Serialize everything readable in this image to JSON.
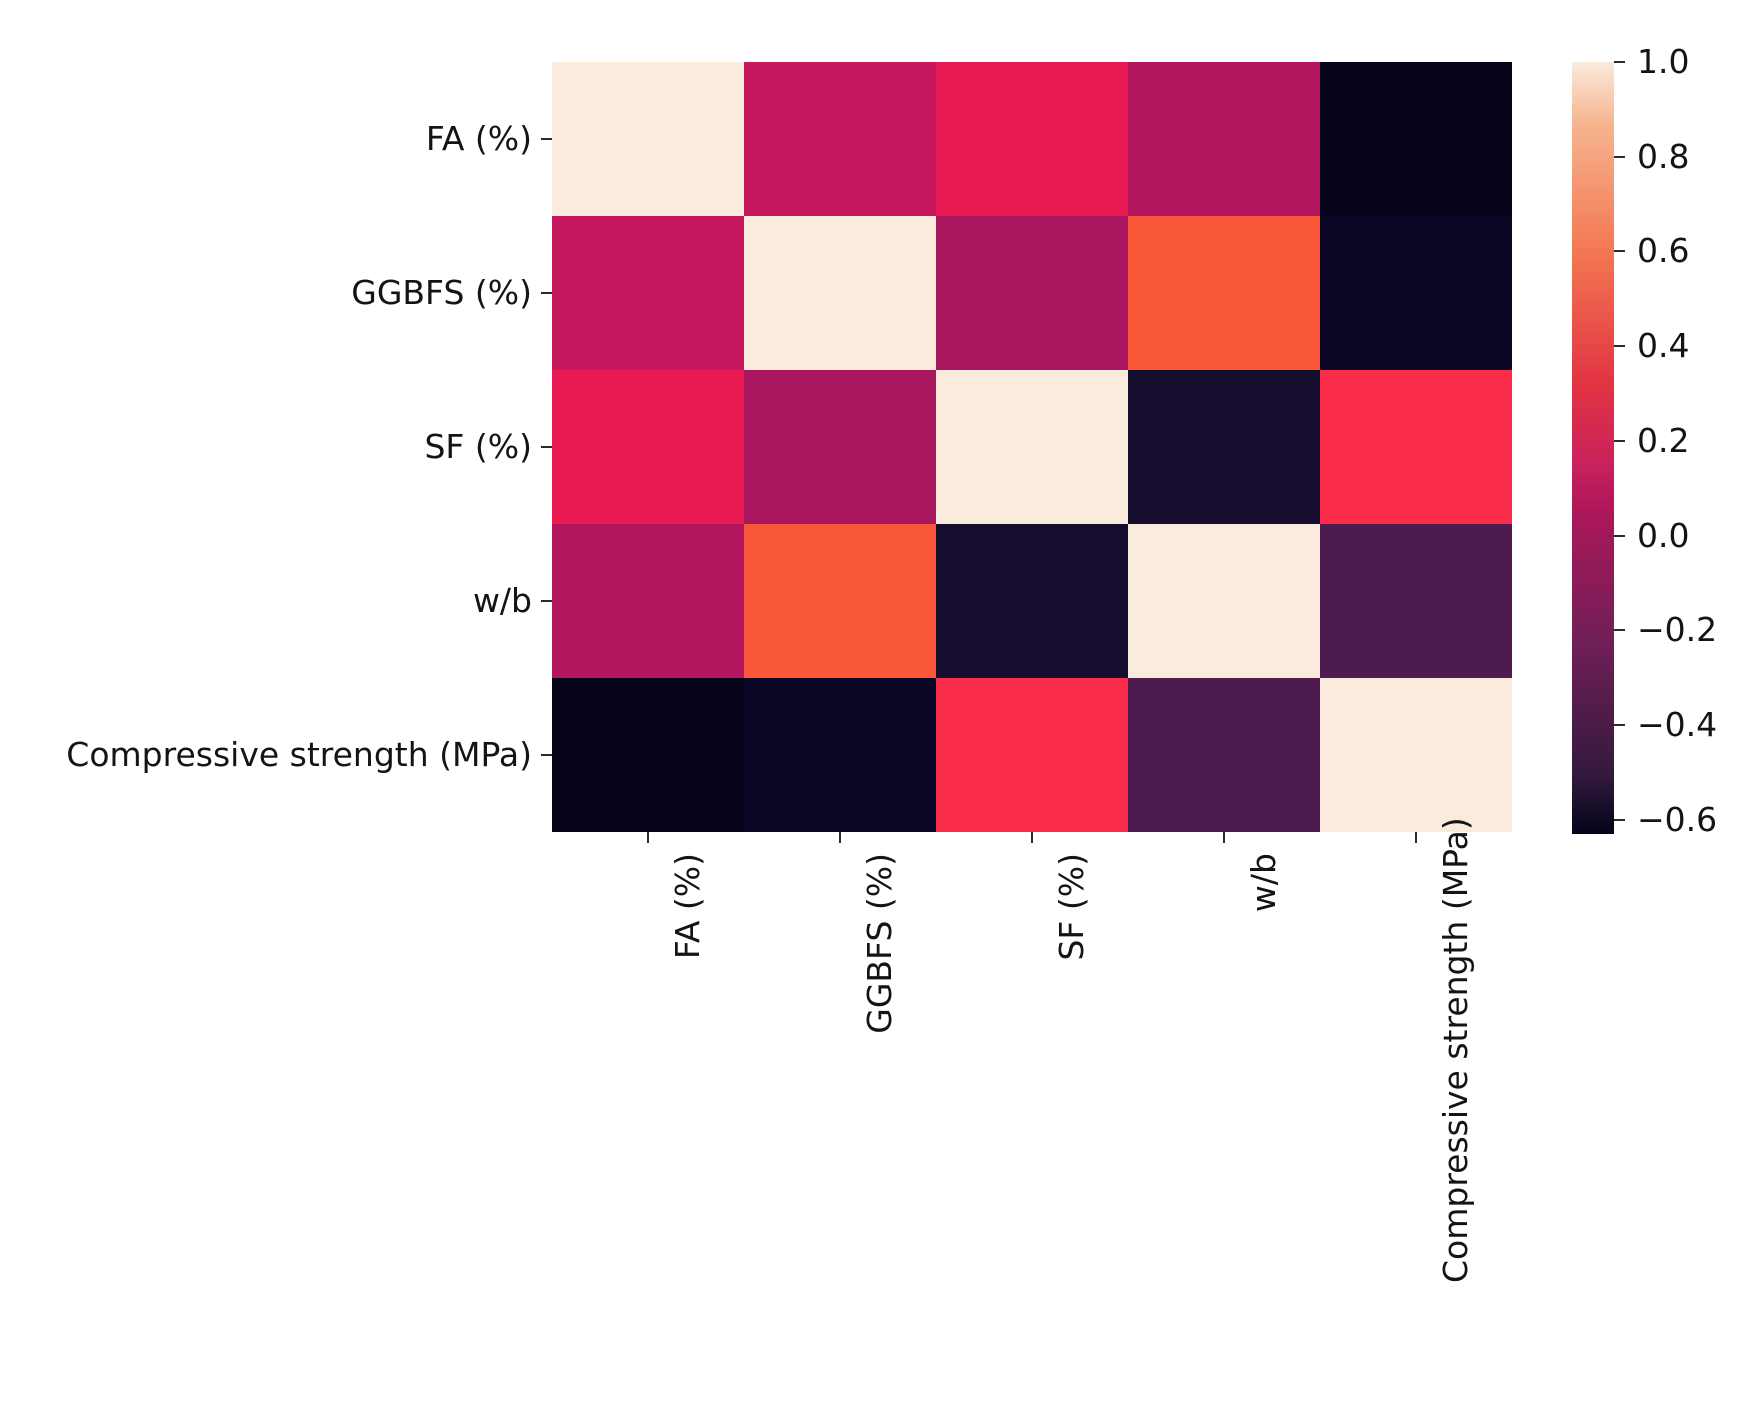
{
  "figure": {
    "background_color": "#ffffff",
    "text_color": "#141414",
    "tick_color": "#2b2b2b"
  },
  "chart_data": {
    "type": "heatmap",
    "title": "",
    "subtitle": "",
    "description": "Correlation matrix heatmap (seaborn rocket colormap) of concrete mix variables vs compressive strength",
    "variables": [
      "FA (%)",
      "GGBFS (%)",
      "SF (%)",
      "w/b",
      "Compressive strength (MPa)"
    ],
    "x_tick_labels": [
      "FA (%)",
      "GGBFS (%)",
      "SF (%)",
      "w/b",
      "Compressive strength (MPa)"
    ],
    "y_tick_labels": [
      "FA (%)",
      "GGBFS (%)",
      "SF (%)",
      "w/b",
      "Compressive strength (MPa)"
    ],
    "matrix": [
      [
        1.0,
        0.17,
        0.3,
        0.06,
        -0.63
      ],
      [
        0.17,
        1.0,
        0.04,
        0.52,
        -0.57
      ],
      [
        0.3,
        0.04,
        1.0,
        -0.52,
        0.38
      ],
      [
        0.06,
        0.52,
        -0.52,
        1.0,
        -0.3
      ],
      [
        -0.63,
        -0.57,
        0.38,
        -0.3,
        1.0
      ]
    ],
    "cell_colors": [
      [
        "#FBEBDC",
        "#C5175E",
        "#EA1B53",
        "#B2165F",
        "#06041A"
      ],
      [
        "#C5175E",
        "#FBEBDC",
        "#A8165F",
        "#FA5839",
        "#0A0623"
      ],
      [
        "#EA1B53",
        "#A8165F",
        "#FBEBDC",
        "#170D2E",
        "#FB2B4A"
      ],
      [
        "#B2165F",
        "#FA5839",
        "#170D2E",
        "#FBEBDC",
        "#4E1B50"
      ],
      [
        "#06041A",
        "#0A0623",
        "#FB2B4A",
        "#4E1B50",
        "#FBEBDC"
      ]
    ],
    "colormap": "rocket",
    "vmin": -0.63,
    "vmax": 1.0,
    "grid": false,
    "colorbar": {
      "position": "right",
      "tick_labels": [
        "1.0",
        "0.8",
        "0.6",
        "0.4",
        "0.2",
        "0.0",
        "−0.2",
        "−0.4",
        "−0.6"
      ],
      "tick_values": [
        1.0,
        0.8,
        0.6,
        0.4,
        0.2,
        0.0,
        -0.2,
        -0.4,
        -0.6
      ],
      "gradient_stops": [
        {
          "color": "#FAEBDD",
          "pos": 0.0
        },
        {
          "color": "#F6B48F",
          "pos": 0.08
        },
        {
          "color": "#F37651",
          "pos": 0.25
        },
        {
          "color": "#E13342",
          "pos": 0.42
        },
        {
          "color": "#C9225C",
          "pos": 0.52
        },
        {
          "color": "#AD1759",
          "pos": 0.58
        },
        {
          "color": "#701F57",
          "pos": 0.75
        },
        {
          "color": "#35193E",
          "pos": 0.92
        },
        {
          "color": "#03051A",
          "pos": 1.0
        }
      ]
    }
  }
}
